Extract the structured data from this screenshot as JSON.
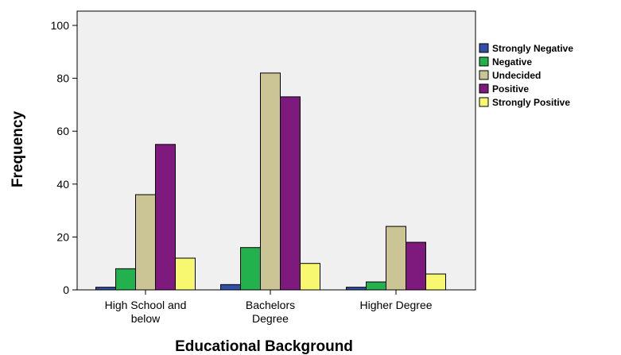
{
  "chart_data": {
    "type": "bar",
    "title": "",
    "xlabel": "Educational Background",
    "ylabel": "Frequency",
    "ylim": [
      0,
      100
    ],
    "yticks": [
      0,
      20,
      40,
      60,
      80,
      100
    ],
    "grid": false,
    "legend_position": "right",
    "categories": [
      [
        "High School and",
        "below"
      ],
      [
        "Bachelors",
        "Degree"
      ],
      [
        "Higher Degree"
      ]
    ],
    "series": [
      {
        "name": "Strongly Negative",
        "color": "#3050a8",
        "values": [
          1,
          2,
          1
        ]
      },
      {
        "name": "Negative",
        "color": "#22b14c",
        "values": [
          8,
          16,
          3
        ]
      },
      {
        "name": "Undecided",
        "color": "#cbc494",
        "values": [
          36,
          82,
          24
        ]
      },
      {
        "name": "Positive",
        "color": "#7e1a7e",
        "values": [
          55,
          73,
          18
        ]
      },
      {
        "name": "Strongly Positive",
        "color": "#f8f870",
        "values": [
          12,
          10,
          6
        ]
      }
    ],
    "plot_background": "#f0f0f0"
  }
}
